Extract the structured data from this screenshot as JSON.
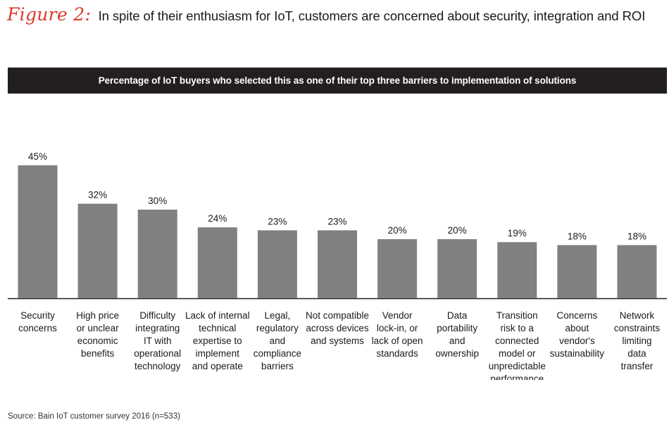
{
  "figure": {
    "label": "Figure 2:",
    "caption": "In spite of their enthusiasm for IoT, customers are concerned about security, integration and ROI"
  },
  "header": {
    "text": "Percentage of IoT buyers who selected this as one of their top three barriers to implementation of solutions"
  },
  "source": "Source: Bain IoT customer survey 2016 (n=533)",
  "colors": {
    "bar": "#808083",
    "header_bg": "#231f20",
    "accent": "#d93a2b",
    "text": "#1a1a1a"
  },
  "chart_data": {
    "type": "bar",
    "categories": [
      "Security concerns",
      "High price or unclear economic benefits",
      "Difficulty integrating IT with operational technology",
      "Lack of internal technical expertise to implement and operate",
      "Legal, regulatory and compliance barriers",
      "Not compatible across devices and systems",
      "Vendor lock-in, or lack of open standards",
      "Data portability and ownership",
      "Transition risk to a connected model or unpredictable performance",
      "Concerns about vendor's sustainability",
      "Network constraints limiting data transfer"
    ],
    "category_lines": [
      [
        "Security",
        "concerns"
      ],
      [
        "High price",
        "or unclear",
        "economic",
        "benefits"
      ],
      [
        "Difficulty",
        "integrating",
        "IT with",
        "operational",
        "technology"
      ],
      [
        "Lack of internal",
        "technical",
        "expertise to",
        "implement",
        "and operate"
      ],
      [
        "Legal,",
        "regulatory",
        "and",
        "compliance",
        "barriers"
      ],
      [
        "Not compatible",
        "across devices",
        "and systems"
      ],
      [
        "Vendor",
        "lock-in, or",
        "lack of open",
        "standards"
      ],
      [
        "Data",
        "portability",
        "and",
        "ownership"
      ],
      [
        "Transition",
        "risk to a",
        "connected",
        "model or",
        "unpredictable",
        "performance"
      ],
      [
        "Concerns",
        "about",
        "vendor's",
        "sustainability"
      ],
      [
        "Network",
        "constraints",
        "limiting",
        "data",
        "transfer"
      ]
    ],
    "values": [
      45,
      32,
      30,
      24,
      23,
      23,
      20,
      20,
      19,
      18,
      18
    ],
    "data_labels": [
      "45%",
      "32%",
      "30%",
      "24%",
      "23%",
      "23%",
      "20%",
      "20%",
      "19%",
      "18%",
      "18%"
    ],
    "unit": "%",
    "ylim": [
      0,
      50
    ],
    "grid": false,
    "legend": "none"
  }
}
